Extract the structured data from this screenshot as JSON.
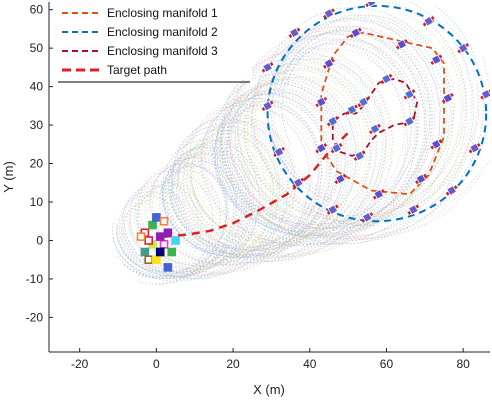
{
  "chart_data": {
    "type": "line",
    "xlabel": "X (m)",
    "ylabel": "Y (m)",
    "xlim": [
      -28,
      87
    ],
    "ylim": [
      -29,
      62
    ],
    "xticks": [
      -20,
      0,
      20,
      40,
      60,
      80
    ],
    "yticks": [
      -20,
      -10,
      0,
      10,
      20,
      30,
      40,
      50,
      60
    ],
    "grid": false,
    "legend_position": "top-left",
    "legend": [
      {
        "label": "Enclosing manifold 1",
        "color": "#d95319",
        "dash": "dashed"
      },
      {
        "label": "Enclosing manifold 2",
        "color": "#0072bd",
        "dash": "dashed"
      },
      {
        "label": "Enclosing manifold 3",
        "color": "#a2142f",
        "dash": "dashed"
      },
      {
        "label": "Target path",
        "color": "#e02020",
        "dash": "dashed-thick"
      }
    ],
    "enclosing_manifold_1": {
      "x": [
        50,
        54,
        72,
        75,
        75,
        71,
        66,
        56,
        47,
        43,
        43,
        46,
        50
      ],
      "y": [
        53,
        54,
        50,
        46,
        27,
        17,
        12,
        13,
        18,
        24,
        38,
        48,
        53
      ]
    },
    "enclosing_manifold_2": {
      "circle": {
        "cx": 57.5,
        "cy": 33,
        "rx": 28.5,
        "ry": 28
      }
    },
    "enclosing_manifold_3": {
      "x": [
        58,
        62,
        65,
        68,
        67,
        62,
        58,
        56,
        54,
        51,
        48,
        46,
        46,
        49,
        52,
        54,
        56,
        58
      ],
      "y": [
        41,
        42,
        41,
        36,
        31,
        30,
        28,
        26,
        23,
        22,
        23,
        26,
        31,
        33,
        33,
        35,
        38,
        41
      ]
    },
    "target_path": {
      "x": [
        2,
        8,
        14,
        20,
        27,
        34,
        40,
        45,
        50
      ],
      "y": [
        1,
        1.5,
        2.5,
        4.5,
        8,
        12,
        17,
        23,
        28
      ]
    },
    "agents_on_manifold_2": [
      [
        56,
        62
      ],
      [
        71,
        57
      ],
      [
        80,
        50
      ],
      [
        86,
        38
      ],
      [
        83,
        24
      ],
      [
        77,
        13
      ],
      [
        67,
        8
      ],
      [
        55,
        6
      ],
      [
        46,
        8
      ],
      [
        37,
        15
      ],
      [
        32,
        23
      ],
      [
        29,
        35
      ],
      [
        29,
        45
      ],
      [
        36,
        54
      ],
      [
        45,
        59
      ]
    ],
    "agents_on_manifold_1": [
      [
        52,
        54
      ],
      [
        64,
        51
      ],
      [
        73,
        47
      ],
      [
        76,
        37
      ],
      [
        73,
        25
      ],
      [
        69,
        16
      ],
      [
        58,
        12
      ],
      [
        48,
        16
      ],
      [
        43,
        24
      ],
      [
        43,
        36
      ],
      [
        45,
        46
      ]
    ],
    "agents_on_manifold_3": [
      [
        60,
        42
      ],
      [
        66,
        38
      ],
      [
        66,
        31
      ],
      [
        57,
        29
      ],
      [
        53,
        22
      ],
      [
        47,
        24
      ],
      [
        46,
        31
      ],
      [
        51,
        34
      ],
      [
        54,
        36
      ]
    ],
    "agents_near_origin": [
      [
        -3,
        2
      ],
      [
        -1,
        4
      ],
      [
        0,
        6
      ],
      [
        2,
        5
      ],
      [
        3,
        2
      ],
      [
        5,
        0
      ],
      [
        2,
        -1
      ],
      [
        -1,
        -1
      ],
      [
        -3,
        -3
      ],
      [
        -2,
        -5
      ],
      [
        0,
        -5
      ],
      [
        1,
        -3
      ],
      [
        -2,
        0
      ],
      [
        4,
        -3
      ],
      [
        3,
        -7
      ],
      [
        -4,
        1
      ],
      [
        1,
        1
      ]
    ],
    "agent_colors": [
      "#e6194b",
      "#3cb44b",
      "#4363d8",
      "#f58231",
      "#911eb4",
      "#42d4f4",
      "#f032e6",
      "#bfef45",
      "#469990",
      "#9a6324",
      "#ffe119",
      "#000075"
    ]
  }
}
